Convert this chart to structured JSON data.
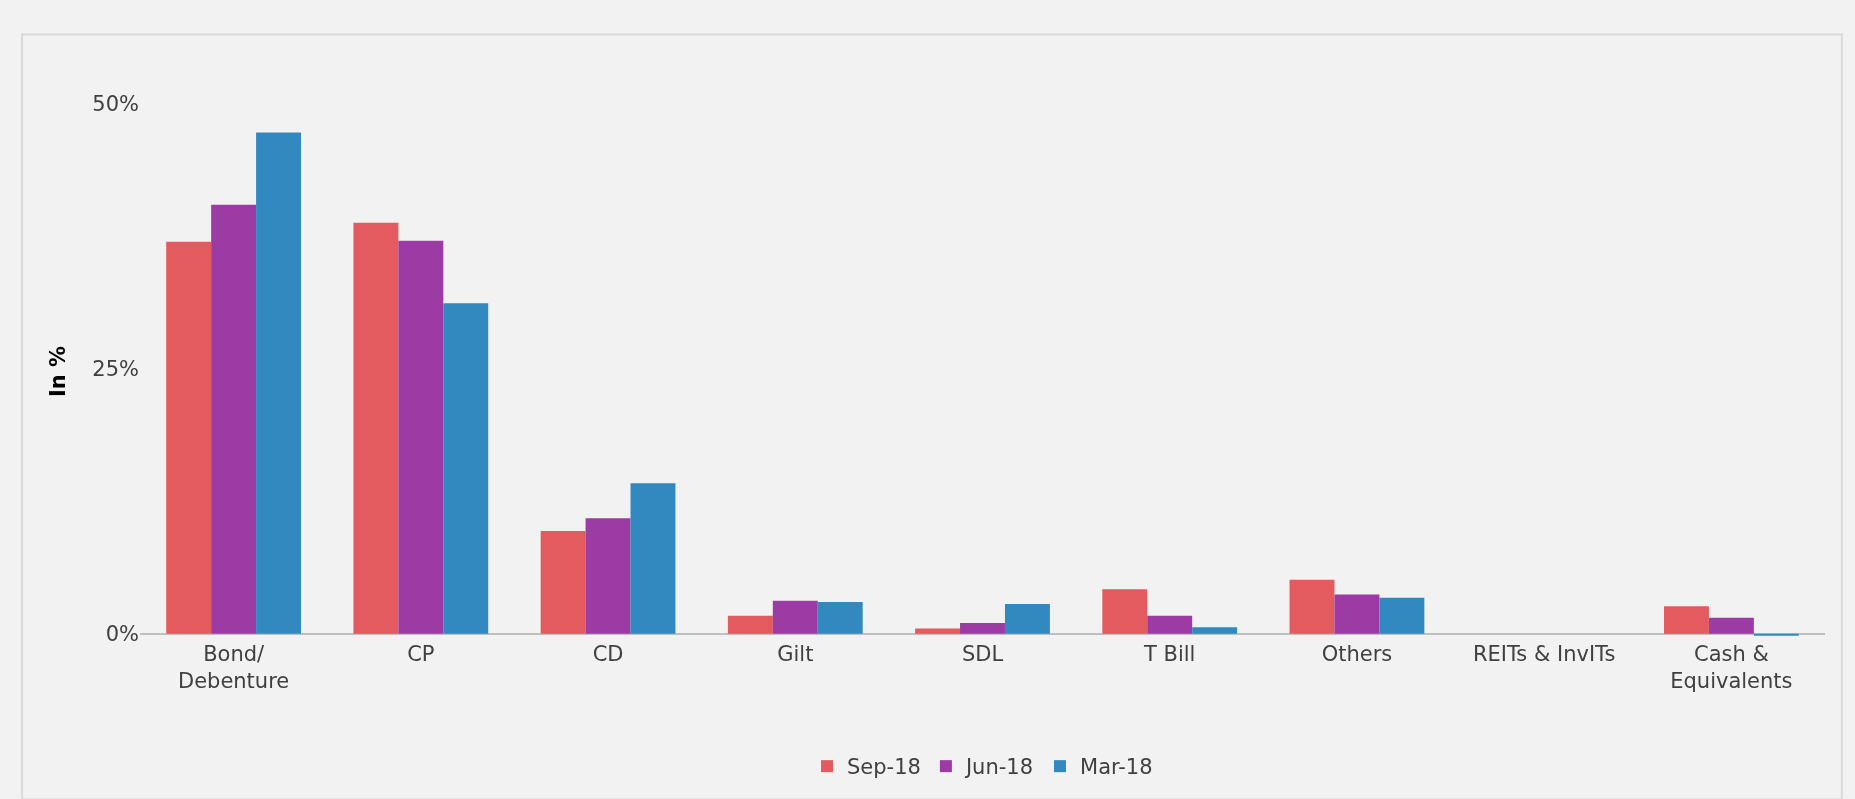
{
  "chart_data": {
    "type": "bar",
    "ylabel": "In %",
    "categories": [
      "Bond/\nDebenture",
      "CP",
      "CD",
      "Gilt",
      "SDL",
      "T Bill",
      "Others",
      "REITs & InvITs",
      "Cash &\nEquivalents"
    ],
    "series": [
      {
        "name": "Sep-18",
        "color": "#e35a5f",
        "values": [
          37.0,
          38.8,
          9.7,
          1.7,
          0.5,
          4.2,
          5.1,
          0,
          2.6
        ]
      },
      {
        "name": "Jun-18",
        "color": "#9b3ba3",
        "values": [
          40.5,
          37.1,
          10.9,
          3.1,
          1.0,
          1.7,
          3.7,
          0,
          1.5
        ]
      },
      {
        "name": "Mar-18",
        "color": "#3289bf",
        "values": [
          47.3,
          31.2,
          14.2,
          3.0,
          2.8,
          0.6,
          3.4,
          0,
          -0.2
        ]
      }
    ],
    "ylim": [
      -0.5,
      50
    ],
    "yticks": [
      {
        "value": 0,
        "label": "0%"
      },
      {
        "value": 25,
        "label": "25%"
      },
      {
        "value": 50,
        "label": "50%"
      }
    ],
    "grid": false,
    "legend": "bottom"
  }
}
